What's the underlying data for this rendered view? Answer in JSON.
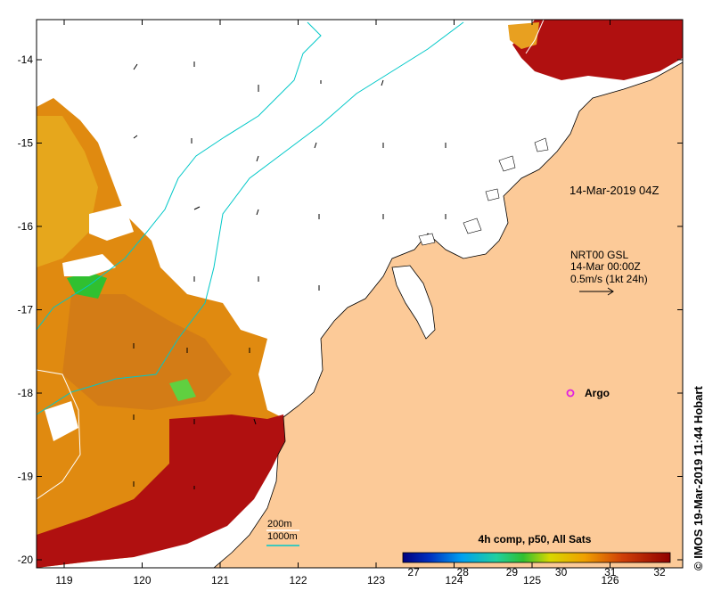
{
  "map": {
    "timestamp_label": "14-Mar-2019 04Z",
    "current_legend": {
      "line1": "NRT00 GSL",
      "line2": "14-Mar 00:00Z",
      "line3": "0.5m/s (1kt 24h)"
    },
    "argo_label": "Argo",
    "isobath_legend": {
      "shallow": "200m",
      "deep": "1000m"
    },
    "colorbar": {
      "title": "4h comp, p50, All Sats",
      "ticks": [
        "27",
        "28",
        "29",
        "30",
        "31",
        "32"
      ],
      "min": 27,
      "max": 32
    },
    "x_ticks": [
      "119",
      "120",
      "121",
      "122",
      "123",
      "124",
      "125",
      "126"
    ],
    "y_ticks": [
      "-14",
      "-15",
      "-16",
      "-17",
      "-18",
      "-19",
      "-20"
    ],
    "credit": "© IMOS 19-Mar-2019 11:44 Hobart",
    "colors": {
      "land": "#fcca98",
      "isobath_200m": "#00c8c8",
      "isobath_1000m": "#ffffff",
      "argo": "#e020e0",
      "sst_hot": "#b01010",
      "sst_warm": "#e08a10",
      "sst_cool": "#30c030"
    }
  }
}
